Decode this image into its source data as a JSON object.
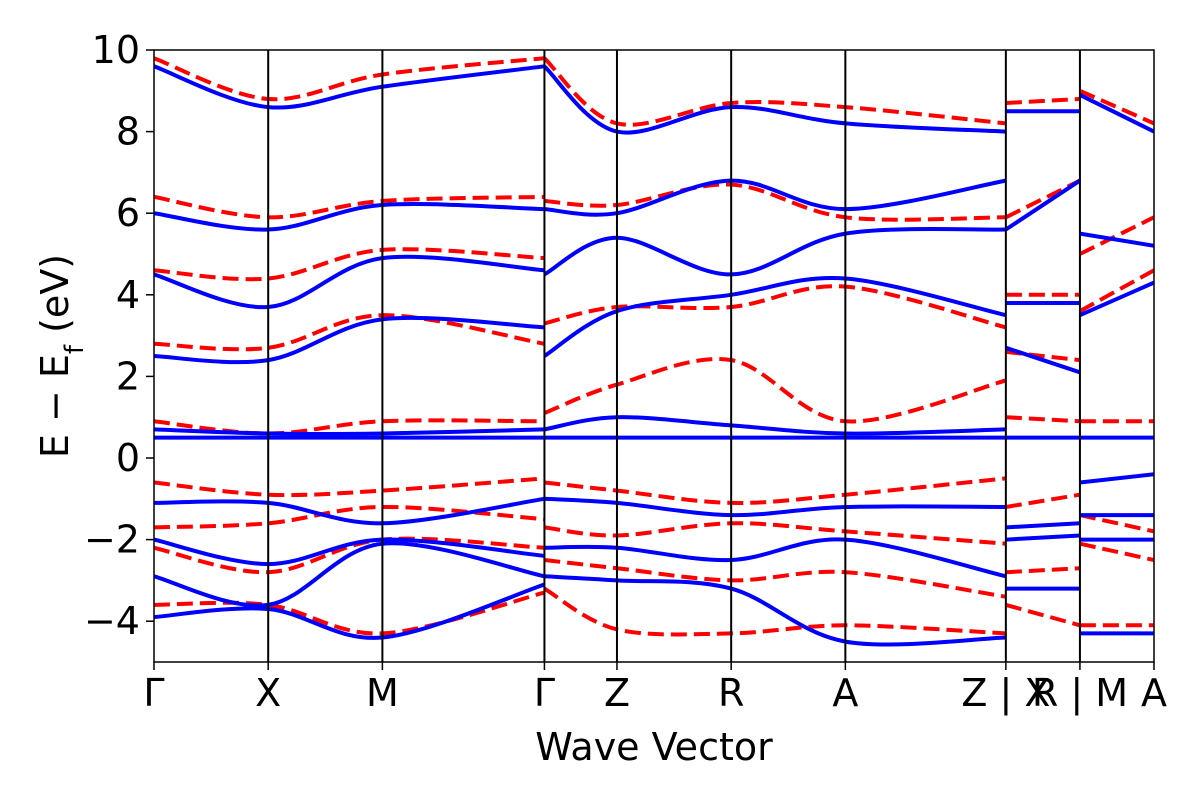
{
  "chart_data": {
    "type": "line",
    "xlabel": "Wave Vector",
    "ylabel": "E  −  E",
    "ylabel_subscript": "f",
    "ylabel_unit": " (eV)",
    "ylim": [
      -5,
      10
    ],
    "yticks": [
      -4,
      -2,
      0,
      2,
      4,
      6,
      8,
      10
    ],
    "ytick_labels": [
      "−4",
      "−2",
      "0",
      "2",
      "4",
      "6",
      "8",
      "10"
    ],
    "kpath_ticks": [
      {
        "label": "Γ",
        "k": 0.0
      },
      {
        "label": "X",
        "k": 0.74
      },
      {
        "label": "M",
        "k": 1.48
      },
      {
        "label": "Γ",
        "k": 2.53
      },
      {
        "label": "Z",
        "k": 3.0
      },
      {
        "label": "R",
        "k": 3.74
      },
      {
        "label": "A",
        "k": 4.48
      },
      {
        "label": "Z | X",
        "k": 5.52
      },
      {
        "label": "R | M",
        "k": 6.0
      },
      {
        "label": "A",
        "k": 6.48
      }
    ],
    "segment_breaks": [
      5.52,
      6.0
    ],
    "grid": false,
    "legend": "none",
    "colors": {
      "solid": "#0000ff",
      "dashed": "#ff0000"
    },
    "series": [
      {
        "style": "dashed",
        "color": "#ff0000",
        "bands": [
          {
            "k": [
              0,
              0.74,
              1.48,
              2.53
            ],
            "E": [
              -3.6,
              -3.6,
              -4.3,
              -3.3
            ]
          },
          {
            "k": [
              0,
              0.74,
              1.48,
              2.53
            ],
            "E": [
              -2.2,
              -2.8,
              -2.0,
              -2.2
            ]
          },
          {
            "k": [
              0,
              0.74,
              1.48,
              2.53
            ],
            "E": [
              -1.7,
              -1.6,
              -1.2,
              -1.5
            ]
          },
          {
            "k": [
              0,
              0.74,
              1.48,
              2.53
            ],
            "E": [
              -0.6,
              -0.9,
              -0.8,
              -0.5
            ]
          },
          {
            "k": [
              0,
              0.74,
              1.48,
              2.53
            ],
            "E": [
              0.9,
              0.6,
              0.9,
              0.9
            ]
          },
          {
            "k": [
              0,
              0.74,
              1.48,
              2.53
            ],
            "E": [
              2.8,
              2.7,
              3.5,
              2.8
            ]
          },
          {
            "k": [
              0,
              0.74,
              1.48,
              2.53
            ],
            "E": [
              4.6,
              4.4,
              5.1,
              4.9
            ]
          },
          {
            "k": [
              0,
              0.74,
              1.48,
              2.53
            ],
            "E": [
              6.4,
              5.9,
              6.3,
              6.4
            ]
          },
          {
            "k": [
              0,
              0.74,
              1.48,
              2.53
            ],
            "E": [
              9.8,
              8.8,
              9.4,
              9.8
            ]
          },
          {
            "k": [
              2.53,
              3.0,
              3.74,
              4.48,
              5.52
            ],
            "E": [
              -3.2,
              -4.2,
              -4.3,
              -4.1,
              -4.3
            ]
          },
          {
            "k": [
              2.53,
              3.0,
              3.74,
              4.48,
              5.52
            ],
            "E": [
              -2.5,
              -2.7,
              -3.0,
              -2.8,
              -3.4
            ]
          },
          {
            "k": [
              2.53,
              3.0,
              3.74,
              4.48,
              5.52
            ],
            "E": [
              -1.7,
              -1.9,
              -1.6,
              -1.8,
              -2.1
            ]
          },
          {
            "k": [
              2.53,
              3.0,
              3.74,
              4.48,
              5.52
            ],
            "E": [
              -0.6,
              -0.8,
              -1.1,
              -0.9,
              -0.5
            ]
          },
          {
            "k": [
              2.53,
              3.0,
              3.74,
              4.48,
              5.52
            ],
            "E": [
              1.1,
              1.8,
              2.4,
              0.9,
              1.9
            ]
          },
          {
            "k": [
              2.53,
              3.0,
              3.74,
              4.48,
              5.52
            ],
            "E": [
              3.3,
              3.7,
              3.7,
              4.2,
              3.2
            ]
          },
          {
            "k": [
              2.53,
              3.0,
              3.74,
              4.48,
              5.52
            ],
            "E": [
              6.3,
              6.2,
              6.7,
              5.9,
              5.9
            ]
          },
          {
            "k": [
              2.53,
              3.0,
              3.74,
              4.48,
              5.52
            ],
            "E": [
              9.8,
              8.2,
              8.7,
              8.6,
              8.2
            ]
          },
          {
            "k": [
              5.52,
              6.0
            ],
            "E": [
              -3.6,
              -4.1
            ]
          },
          {
            "k": [
              5.52,
              6.0
            ],
            "E": [
              -2.8,
              -2.7
            ]
          },
          {
            "k": [
              5.52,
              6.0
            ],
            "E": [
              -1.2,
              -0.9
            ]
          },
          {
            "k": [
              5.52,
              6.0
            ],
            "E": [
              1.0,
              0.9
            ]
          },
          {
            "k": [
              5.52,
              6.0
            ],
            "E": [
              2.6,
              2.4
            ]
          },
          {
            "k": [
              5.52,
              6.0
            ],
            "E": [
              4.0,
              4.0
            ]
          },
          {
            "k": [
              5.52,
              6.0
            ],
            "E": [
              5.9,
              6.8
            ]
          },
          {
            "k": [
              5.52,
              6.0
            ],
            "E": [
              8.7,
              8.8
            ]
          },
          {
            "k": [
              6.0,
              6.48
            ],
            "E": [
              -4.1,
              -4.1
            ]
          },
          {
            "k": [
              6.0,
              6.48
            ],
            "E": [
              -2.1,
              -2.5
            ]
          },
          {
            "k": [
              6.0,
              6.48
            ],
            "E": [
              -1.4,
              -1.8
            ]
          },
          {
            "k": [
              6.0,
              6.48
            ],
            "E": [
              0.9,
              0.9
            ]
          },
          {
            "k": [
              6.0,
              6.48
            ],
            "E": [
              3.6,
              4.6
            ]
          },
          {
            "k": [
              6.0,
              6.48
            ],
            "E": [
              5.0,
              5.9
            ]
          },
          {
            "k": [
              6.0,
              6.48
            ],
            "E": [
              9.0,
              8.2
            ]
          }
        ]
      },
      {
        "style": "solid",
        "color": "#0000ff",
        "bands": [
          {
            "k": [
              0,
              0.74,
              1.48,
              2.53
            ],
            "E": [
              -3.9,
              -3.7,
              -4.4,
              -3.1
            ]
          },
          {
            "k": [
              0,
              0.74,
              1.48,
              2.53
            ],
            "E": [
              -2.9,
              -3.6,
              -2.1,
              -2.9
            ]
          },
          {
            "k": [
              0,
              0.74,
              1.48,
              2.53
            ],
            "E": [
              -2.0,
              -2.6,
              -2.0,
              -2.4
            ]
          },
          {
            "k": [
              0,
              0.74,
              1.48,
              2.53
            ],
            "E": [
              -1.1,
              -1.1,
              -1.6,
              -1.0
            ]
          },
          {
            "k": [
              0,
              0.74,
              1.48,
              2.53
            ],
            "E": [
              0.5,
              0.5,
              0.5,
              0.5
            ]
          },
          {
            "k": [
              0,
              0.74,
              1.48,
              2.53
            ],
            "E": [
              0.7,
              0.6,
              0.6,
              0.7
            ]
          },
          {
            "k": [
              0,
              0.74,
              1.48,
              2.53
            ],
            "E": [
              2.5,
              2.4,
              3.4,
              3.2
            ]
          },
          {
            "k": [
              0,
              0.74,
              1.48,
              2.53
            ],
            "E": [
              4.5,
              3.7,
              4.9,
              4.6
            ]
          },
          {
            "k": [
              0,
              0.74,
              1.48,
              2.53
            ],
            "E": [
              6.0,
              5.6,
              6.2,
              6.1
            ]
          },
          {
            "k": [
              0,
              0.74,
              1.48,
              2.53
            ],
            "E": [
              9.6,
              8.6,
              9.1,
              9.6
            ]
          },
          {
            "k": [
              2.53,
              3.0,
              3.74,
              4.48,
              5.52
            ],
            "E": [
              -2.9,
              -3.0,
              -3.2,
              -4.5,
              -4.4
            ]
          },
          {
            "k": [
              2.53,
              3.0,
              3.74,
              4.48,
              5.52
            ],
            "E": [
              -2.2,
              -2.2,
              -2.5,
              -2.0,
              -2.9
            ]
          },
          {
            "k": [
              2.53,
              3.0,
              3.74,
              4.48,
              5.52
            ],
            "E": [
              -1.0,
              -1.1,
              -1.4,
              -1.2,
              -1.2
            ]
          },
          {
            "k": [
              2.53,
              3.0,
              3.74,
              4.48,
              5.52
            ],
            "E": [
              0.5,
              0.5,
              0.5,
              0.5,
              0.5
            ]
          },
          {
            "k": [
              2.53,
              3.0,
              3.74,
              4.48,
              5.52
            ],
            "E": [
              0.7,
              1.0,
              0.8,
              0.6,
              0.7
            ]
          },
          {
            "k": [
              2.53,
              3.0,
              3.74,
              4.48,
              5.52
            ],
            "E": [
              2.5,
              3.6,
              4.0,
              4.4,
              3.5
            ]
          },
          {
            "k": [
              2.53,
              3.0,
              3.74,
              4.48,
              5.52
            ],
            "E": [
              4.5,
              5.4,
              4.5,
              5.5,
              5.6
            ]
          },
          {
            "k": [
              2.53,
              3.0,
              3.74,
              4.48,
              5.52
            ],
            "E": [
              6.1,
              6.0,
              6.8,
              6.1,
              6.8
            ]
          },
          {
            "k": [
              2.53,
              3.0,
              3.74,
              4.48,
              5.52
            ],
            "E": [
              9.6,
              8.0,
              8.6,
              8.2,
              8.0
            ]
          },
          {
            "k": [
              5.52,
              6.0
            ],
            "E": [
              -3.2,
              -3.2
            ]
          },
          {
            "k": [
              5.52,
              6.0
            ],
            "E": [
              -2.0,
              -1.9
            ]
          },
          {
            "k": [
              5.52,
              6.0
            ],
            "E": [
              -1.7,
              -1.6
            ]
          },
          {
            "k": [
              5.52,
              6.0
            ],
            "E": [
              0.5,
              0.5
            ]
          },
          {
            "k": [
              5.52,
              6.0
            ],
            "E": [
              2.7,
              2.1
            ]
          },
          {
            "k": [
              5.52,
              6.0
            ],
            "E": [
              3.8,
              3.8
            ]
          },
          {
            "k": [
              5.52,
              6.0
            ],
            "E": [
              5.6,
              6.8
            ]
          },
          {
            "k": [
              5.52,
              6.0
            ],
            "E": [
              8.5,
              8.5
            ]
          },
          {
            "k": [
              6.0,
              6.48
            ],
            "E": [
              -4.3,
              -4.3
            ]
          },
          {
            "k": [
              6.0,
              6.48
            ],
            "E": [
              -2.0,
              -2.0
            ]
          },
          {
            "k": [
              6.0,
              6.48
            ],
            "E": [
              -1.4,
              -1.4
            ]
          },
          {
            "k": [
              6.0,
              6.48
            ],
            "E": [
              -0.6,
              -0.4
            ]
          },
          {
            "k": [
              6.0,
              6.48
            ],
            "E": [
              0.5,
              0.5
            ]
          },
          {
            "k": [
              6.0,
              6.48
            ],
            "E": [
              3.5,
              4.3
            ]
          },
          {
            "k": [
              6.0,
              6.48
            ],
            "E": [
              5.5,
              5.2
            ]
          },
          {
            "k": [
              6.0,
              6.48
            ],
            "E": [
              8.9,
              8.0
            ]
          }
        ]
      }
    ]
  }
}
